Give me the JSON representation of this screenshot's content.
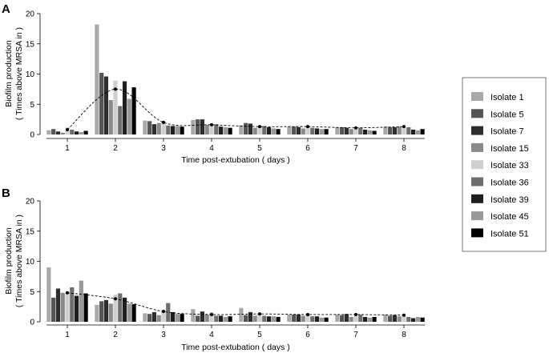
{
  "chart_data": [
    {
      "panel_label": "A",
      "type": "bar",
      "line_overlay": "mean (dashed line)",
      "xlabel": "Time post-extubation ( days )",
      "ylabel_lines": [
        "Biofilm production",
        "( Times above MRSA in )"
      ],
      "ylim": [
        0,
        20
      ],
      "yticks": [
        "0",
        "5",
        "10",
        "15",
        "20"
      ],
      "categories": [
        "1",
        "2",
        "3",
        "4",
        "5",
        "6",
        "7",
        "8"
      ],
      "series": [
        {
          "name": "Isolate 1",
          "color": "#a8a8a8",
          "values": [
            0.7,
            18.2,
            2.3,
            2.4,
            1.5,
            1.3,
            1.2,
            1.3
          ]
        },
        {
          "name": "Isolate 5",
          "color": "#555555",
          "values": [
            0.9,
            10.2,
            2.2,
            2.5,
            1.9,
            1.3,
            1.2,
            1.2
          ]
        },
        {
          "name": "Isolate 7",
          "color": "#2e2e2e",
          "values": [
            0.5,
            9.6,
            1.7,
            2.5,
            1.8,
            1.2,
            1.1,
            1.2
          ]
        },
        {
          "name": "Isolate 15",
          "color": "#8a8a8a",
          "values": [
            0.3,
            5.7,
            1.9,
            1.6,
            1.1,
            1.0,
            0.9,
            1.3
          ]
        },
        {
          "name": "Isolate 33",
          "color": "#cfcfcf",
          "values": [
            1.2,
            8.9,
            2.1,
            1.8,
            1.3,
            1.2,
            0.9,
            1.1
          ]
        },
        {
          "name": "Isolate 36",
          "color": "#6e6e6e",
          "values": [
            0.8,
            4.7,
            1.5,
            1.7,
            1.4,
            1.1,
            1.1,
            1.2
          ]
        },
        {
          "name": "Isolate 39",
          "color": "#1e1e1e",
          "values": [
            0.5,
            8.8,
            1.4,
            1.3,
            1.2,
            1.0,
            0.8,
            0.8
          ]
        },
        {
          "name": "Isolate 45",
          "color": "#999999",
          "values": [
            0.4,
            5.9,
            1.4,
            1.2,
            1.0,
            0.9,
            0.7,
            0.7
          ]
        },
        {
          "name": "Isolate 51",
          "color": "#000000",
          "values": [
            0.6,
            7.8,
            1.3,
            1.1,
            0.9,
            0.9,
            0.6,
            0.9
          ]
        }
      ],
      "mean_line": [
        0.8,
        7.5,
        2.0,
        1.6,
        1.3,
        1.3,
        1.1,
        1.3
      ]
    },
    {
      "panel_label": "B",
      "type": "bar",
      "line_overlay": "mean (dashed line)",
      "xlabel": "Time post-extubation ( days )",
      "ylabel_lines": [
        "Biofilm production",
        "( Times above MRSA in )"
      ],
      "ylim": [
        0,
        20
      ],
      "yticks": [
        "0",
        "5",
        "10",
        "15",
        "20"
      ],
      "categories": [
        "1",
        "2",
        "3",
        "4",
        "5",
        "6",
        "7",
        "8"
      ],
      "series": [
        {
          "name": "Isolate 1",
          "color": "#a8a8a8",
          "values": [
            9.0,
            2.8,
            1.4,
            2.1,
            2.3,
            1.2,
            1.2,
            1.2
          ]
        },
        {
          "name": "Isolate 5",
          "color": "#555555",
          "values": [
            4.0,
            3.4,
            1.3,
            1.0,
            1.1,
            1.2,
            1.1,
            1.0
          ]
        },
        {
          "name": "Isolate 7",
          "color": "#2e2e2e",
          "values": [
            5.5,
            3.6,
            1.6,
            1.7,
            1.6,
            1.2,
            1.3,
            1.1
          ]
        },
        {
          "name": "Isolate 15",
          "color": "#8a8a8a",
          "values": [
            4.8,
            3.0,
            1.1,
            1.2,
            1.0,
            1.0,
            0.8,
            0.9
          ]
        },
        {
          "name": "Isolate 33",
          "color": "#cfcfcf",
          "values": [
            4.8,
            4.5,
            2.0,
            1.6,
            1.3,
            1.2,
            0.9,
            1.1
          ]
        },
        {
          "name": "Isolate 36",
          "color": "#6e6e6e",
          "values": [
            5.7,
            4.7,
            3.1,
            1.0,
            1.0,
            0.9,
            1.2,
            0.8
          ]
        },
        {
          "name": "Isolate 39",
          "color": "#1e1e1e",
          "values": [
            4.3,
            4.0,
            1.6,
            1.0,
            0.9,
            0.9,
            0.8,
            0.6
          ]
        },
        {
          "name": "Isolate 45",
          "color": "#999999",
          "values": [
            6.8,
            3.0,
            1.3,
            0.8,
            0.9,
            0.7,
            0.7,
            0.8
          ]
        },
        {
          "name": "Isolate 51",
          "color": "#000000",
          "values": [
            4.7,
            2.9,
            1.3,
            0.9,
            0.8,
            0.7,
            0.8,
            0.7
          ]
        }
      ],
      "mean_line": [
        4.8,
        3.8,
        1.7,
        1.2,
        1.3,
        1.2,
        1.2,
        1.1
      ]
    }
  ],
  "legend": {
    "placement": "right",
    "items": [
      {
        "label": "Isolate 1",
        "color": "#a8a8a8"
      },
      {
        "label": "Isolate 5",
        "color": "#555555"
      },
      {
        "label": "Isolate 7",
        "color": "#2e2e2e"
      },
      {
        "label": "Isolate 15",
        "color": "#8a8a8a"
      },
      {
        "label": "Isolate 33",
        "color": "#cfcfcf"
      },
      {
        "label": "Isolate 36",
        "color": "#6e6e6e"
      },
      {
        "label": "Isolate 39",
        "color": "#1e1e1e"
      },
      {
        "label": "Isolate 45",
        "color": "#999999"
      },
      {
        "label": "Isolate 51",
        "color": "#000000"
      }
    ]
  }
}
